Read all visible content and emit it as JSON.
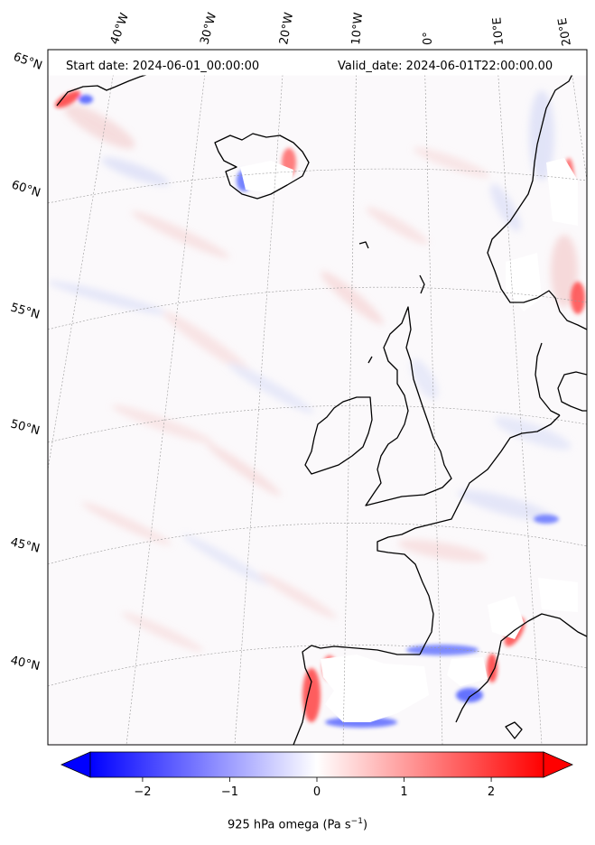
{
  "header": {
    "start_date": "Start date: 2024-06-01_00:00:00",
    "valid_date": "Valid_date: 2024-06-01T22:00:00.00"
  },
  "map": {
    "longitude_labels": [
      "40°W",
      "30°W",
      "20°W",
      "10°W",
      "0°",
      "10°E",
      "20°E"
    ],
    "latitude_labels": [
      "65°N",
      "60°N",
      "55°N",
      "50°N",
      "45°N",
      "40°N"
    ]
  },
  "colorbar": {
    "label_prefix": "925 hPa omega (Pa s",
    "label_exp": "−1",
    "label_suffix": ")",
    "ticks": [
      "−2",
      "−1",
      "0",
      "1",
      "2"
    ],
    "vmin": -2.6,
    "vmax": 2.6,
    "extend": "both",
    "colormap": "bwr",
    "color_low": "#0000ff",
    "color_mid": "#ffffff",
    "color_high": "#ff0000"
  }
}
